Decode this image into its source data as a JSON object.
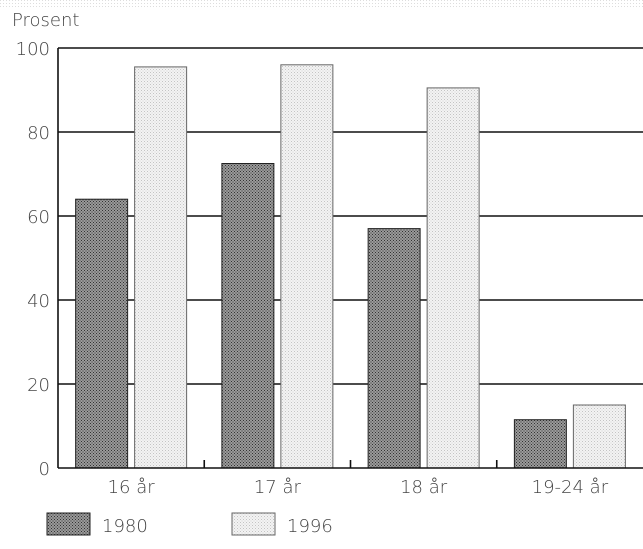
{
  "chart_data": {
    "type": "bar",
    "ylabel": "Prosent",
    "categories": [
      "16 år",
      "17 år",
      "18 år",
      "19-24 år"
    ],
    "ylim": [
      0,
      100
    ],
    "yticks": [
      "0",
      "20",
      "40",
      "60",
      "80",
      "100"
    ],
    "grid": true,
    "legend_position": "bottom-left",
    "series": [
      {
        "name": "1980",
        "values": [
          64,
          72.5,
          57,
          11.5
        ],
        "color": "#7a7a7a",
        "pattern": "dense-crosshatch"
      },
      {
        "name": "1996",
        "values": [
          95.5,
          96,
          90.5,
          15
        ],
        "color": "#e6e6e6",
        "pattern": "light-dots"
      }
    ]
  }
}
